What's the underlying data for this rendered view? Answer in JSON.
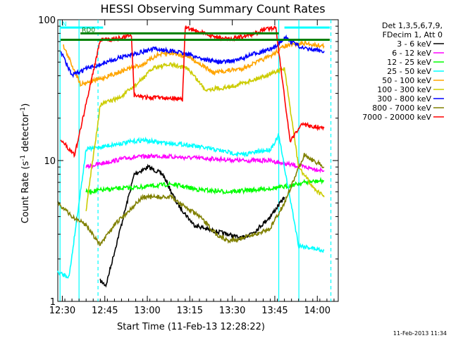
{
  "chart_data": {
    "type": "line",
    "title": "HESSI Observing Summary Count Rates",
    "xlabel": "Start Time (11-Feb-13 12:28:22)",
    "ylabel": "Count Rate (s⁻¹ detector⁻¹)",
    "ylabel_parts": {
      "pre": "Count Rate (s",
      "sup1": "-1",
      "mid": " detector",
      "sup2": "-1",
      "post": ")"
    },
    "x_units": "minutes since 12:28:22",
    "xlim": [
      0,
      99
    ],
    "ylim": [
      1,
      100
    ],
    "y_scale": "log",
    "x_ticks": [
      {
        "label": "12:30",
        "value": 1.6
      },
      {
        "label": "12:45",
        "value": 16.6
      },
      {
        "label": "13:00",
        "value": 31.6
      },
      {
        "label": "13:15",
        "value": 46.6
      },
      {
        "label": "13:30",
        "value": 61.6
      },
      {
        "label": "13:45",
        "value": 76.6
      },
      {
        "label": "14:00",
        "value": 91.6
      }
    ],
    "y_ticks": [
      {
        "label": "1",
        "value": 1
      },
      {
        "label": "10",
        "value": 10
      },
      {
        "label": "100",
        "value": 100
      }
    ],
    "legend_header": [
      "Det 1,3,5,6,7,9,",
      "FDecim 1, Att 0"
    ],
    "legend_placement": "right",
    "series": [
      {
        "name": "3 - 6 keV",
        "color": "#000000",
        "points": [
          [
            15,
            1.4
          ],
          [
            17,
            1.3
          ],
          [
            27,
            8
          ],
          [
            32,
            9
          ],
          [
            37,
            8
          ],
          [
            42,
            5
          ],
          [
            48,
            3.5
          ],
          [
            54,
            3.2
          ],
          [
            60,
            3
          ],
          [
            65,
            2.8
          ],
          [
            70,
            3.2
          ],
          [
            75,
            4
          ],
          [
            80,
            5.5
          ]
        ]
      },
      {
        "name": "6 - 12 keV",
        "color": "#ff00ff",
        "points": [
          [
            10,
            9
          ],
          [
            15,
            9.5
          ],
          [
            25,
            10.5
          ],
          [
            35,
            10.8
          ],
          [
            45,
            10.5
          ],
          [
            55,
            10.3
          ],
          [
            65,
            10
          ],
          [
            75,
            10
          ],
          [
            80,
            9.5
          ],
          [
            87,
            9
          ],
          [
            94,
            8.5
          ]
        ]
      },
      {
        "name": "12 - 25 keV",
        "color": "#00ff00",
        "points": [
          [
            10,
            6
          ],
          [
            20,
            6.3
          ],
          [
            30,
            6.5
          ],
          [
            40,
            6.8
          ],
          [
            50,
            6.2
          ],
          [
            60,
            6
          ],
          [
            70,
            6.2
          ],
          [
            80,
            6.5
          ],
          [
            87,
            7
          ],
          [
            94,
            7.2
          ]
        ]
      },
      {
        "name": "25 - 50 keV",
        "color": "#00ffff",
        "points": [
          [
            0,
            1.6
          ],
          [
            4,
            1.5
          ],
          [
            10,
            12
          ],
          [
            20,
            13
          ],
          [
            30,
            14
          ],
          [
            35,
            13.5
          ],
          [
            45,
            13
          ],
          [
            55,
            12
          ],
          [
            65,
            11
          ],
          [
            75,
            12
          ],
          [
            78,
            15
          ],
          [
            85,
            2.5
          ],
          [
            94,
            2.3
          ]
        ]
      },
      {
        "name": "50 - 100 keV",
        "color": "#ffa500",
        "points": [
          [
            2,
            65
          ],
          [
            8,
            35
          ],
          [
            15,
            38
          ],
          [
            25,
            45
          ],
          [
            30,
            48
          ],
          [
            35,
            56
          ],
          [
            40,
            58
          ],
          [
            46,
            55
          ],
          [
            55,
            42
          ],
          [
            65,
            45
          ],
          [
            75,
            55
          ],
          [
            80,
            65
          ],
          [
            87,
            68
          ],
          [
            94,
            65
          ]
        ]
      },
      {
        "name": "100 - 300 keV",
        "color": "#cccc00",
        "points": [
          [
            10,
            4.5
          ],
          [
            15,
            25
          ],
          [
            22,
            28
          ],
          [
            28,
            35
          ],
          [
            34,
            46
          ],
          [
            40,
            48
          ],
          [
            46,
            45
          ],
          [
            52,
            32
          ],
          [
            60,
            33
          ],
          [
            70,
            38
          ],
          [
            80,
            45
          ],
          [
            85,
            9
          ],
          [
            90,
            6.5
          ],
          [
            94,
            5.5
          ]
        ]
      },
      {
        "name": "300 - 800 keV",
        "color": "#0000ff",
        "points": [
          [
            1,
            60
          ],
          [
            5,
            40
          ],
          [
            10,
            45
          ],
          [
            15,
            48
          ],
          [
            22,
            54
          ],
          [
            28,
            58
          ],
          [
            34,
            62
          ],
          [
            40,
            60
          ],
          [
            46,
            57
          ],
          [
            52,
            52
          ],
          [
            58,
            50
          ],
          [
            64,
            52
          ],
          [
            70,
            58
          ],
          [
            76,
            62
          ],
          [
            80,
            75
          ],
          [
            87,
            62
          ],
          [
            94,
            60
          ]
        ]
      },
      {
        "name": "800 - 7000 keV",
        "color": "#808000",
        "points": [
          [
            0,
            5
          ],
          [
            5,
            4
          ],
          [
            10,
            3.5
          ],
          [
            15,
            2.5
          ],
          [
            20,
            3.5
          ],
          [
            30,
            5.5
          ],
          [
            40,
            5.5
          ],
          [
            50,
            4
          ],
          [
            56,
            3
          ],
          [
            60,
            2.7
          ],
          [
            65,
            2.8
          ],
          [
            70,
            3
          ],
          [
            75,
            3.3
          ],
          [
            80,
            5
          ],
          [
            87,
            11
          ],
          [
            94,
            9
          ]
        ]
      },
      {
        "name": "7000 - 20000 keV",
        "color": "#ff0000",
        "points": [
          [
            1,
            14
          ],
          [
            6,
            11
          ],
          [
            15,
            72
          ],
          [
            18,
            72
          ],
          [
            22,
            74
          ],
          [
            26,
            78
          ],
          [
            27,
            29
          ],
          [
            32,
            28
          ],
          [
            40,
            28
          ],
          [
            44,
            27
          ],
          [
            45,
            88
          ],
          [
            50,
            82
          ],
          [
            55,
            76
          ],
          [
            60,
            73
          ],
          [
            66,
            76
          ],
          [
            70,
            80
          ],
          [
            73,
            86
          ],
          [
            77,
            88
          ],
          [
            82,
            13.5
          ],
          [
            86,
            18
          ],
          [
            94,
            17
          ]
        ]
      }
    ],
    "segments": [
      {
        "label": "N",
        "y": 88,
        "x_start": 1,
        "x_end": 16,
        "color": "#00ffff"
      },
      {
        "label": "RD0",
        "y": 80,
        "x_start": 8,
        "x_end": 78,
        "color": "#008000"
      },
      {
        "label": "",
        "y": 72,
        "x_start": 1,
        "x_end": 96,
        "color": "#008000"
      },
      {
        "label": "",
        "y": 88,
        "x_start": 80,
        "x_end": 96,
        "color": "#00ffff"
      }
    ],
    "vertical_lines": [
      {
        "x": 0.8,
        "style": "solid",
        "color": "#00ffff"
      },
      {
        "x": 7.5,
        "style": "solid",
        "color": "#00ffff"
      },
      {
        "x": 14.2,
        "style": "dashed",
        "color": "#00ffff"
      },
      {
        "x": 78.0,
        "style": "solid",
        "color": "#00ffff"
      },
      {
        "x": 85.1,
        "style": "solid",
        "color": "#00ffff"
      },
      {
        "x": 96.4,
        "style": "dashed",
        "color": "#00ffff"
      }
    ],
    "grid": false
  },
  "footer": {
    "timestamp": "11-Feb-2013 11:34"
  }
}
